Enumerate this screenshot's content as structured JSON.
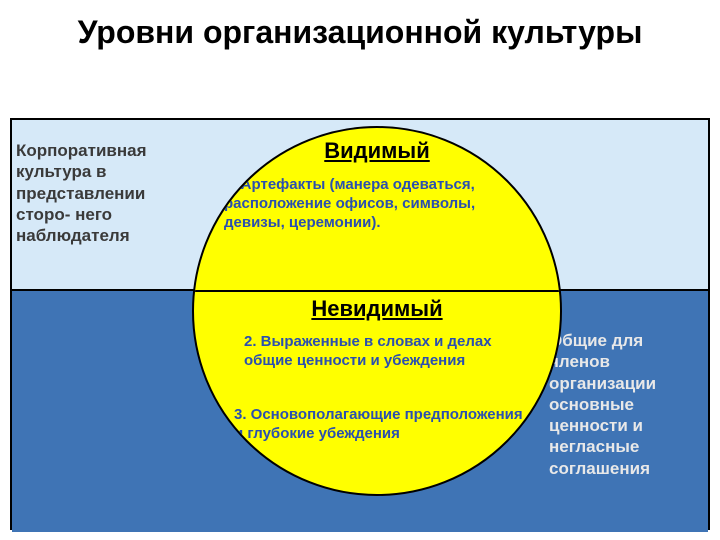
{
  "title": "Уровни организационной культуры",
  "bands": {
    "top_color": "#d6e9f8",
    "bottom_color": "#3f74b5"
  },
  "circle": {
    "fill": "#ffff00",
    "border": "#000000"
  },
  "labels": {
    "visible": "Видимый",
    "invisible": "Невидимый"
  },
  "circle_texts": {
    "t1": "1. Артефакты (манера одеваться, расположение офисов, символы, девизы, церемонии).",
    "t1_color": "#2a4fb0",
    "t2": "2. Выраженные в словах и делах общие ценности и убеждения",
    "t2_color": "#2a4fb0",
    "t3": "3. Основополагающие предположения и глубокие убеждения",
    "t3_color": "#2a4fb0"
  },
  "side": {
    "left": "Корпоративная культура в представлении сторо- него наблюдателя",
    "left_color": "#3a3a3a",
    "right": "Общие для членов организации основные ценности и негласные соглашения",
    "right_color": "#e8e8e8"
  }
}
